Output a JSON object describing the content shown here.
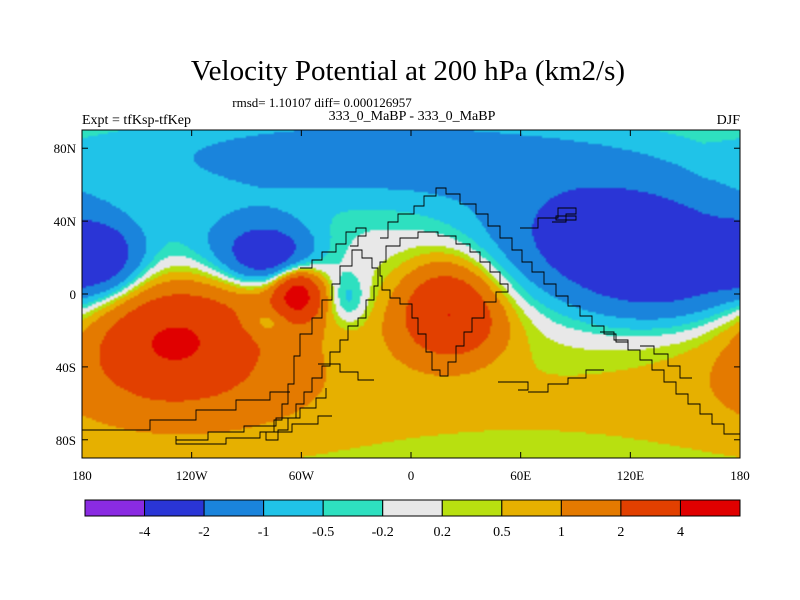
{
  "chart_data": {
    "type": "heatmap",
    "title": "Velocity Potential at 200 hPa (km2/s)",
    "stats_line": "rmsd= 1.10107 diff= 0.000126957",
    "left_label": "Expt = tfKsp-tfKep",
    "center_label": "333_0_MaBP - 333_0_MaBP",
    "right_label": "DJF",
    "x_axis": {
      "range": [
        -180,
        180
      ],
      "ticks": [
        -180,
        -120,
        -60,
        0,
        60,
        120,
        180
      ],
      "tick_labels": [
        "180",
        "120W",
        "60W",
        "0",
        "60E",
        "120E",
        "180"
      ]
    },
    "y_axis": {
      "range": [
        -90,
        90
      ],
      "ticks": [
        80,
        40,
        0,
        -40,
        -80
      ],
      "tick_labels": [
        "80N",
        "40N",
        "0",
        "40S",
        "80S"
      ]
    },
    "colorbar": {
      "levels": [
        "-4",
        "-2",
        "-1",
        "-0.5",
        "-0.2",
        "0.2",
        "0.5",
        "1",
        "2",
        "4"
      ],
      "colors": [
        "#8a2be2",
        "#2a35d6",
        "#1a84dc",
        "#20c3e8",
        "#2ee0c0",
        "#e8e8e8",
        "#b8e010",
        "#e6b000",
        "#e47a00",
        "#e24000",
        "#e00000"
      ]
    },
    "features": [
      {
        "name": "Pacific East negative",
        "lon": -170,
        "lat": 20,
        "value": -2.5
      },
      {
        "name": "North Atlantic negative",
        "lon": -78,
        "lat": 20,
        "value": -2.6
      },
      {
        "name": "North Atlantic outer",
        "lon": -90,
        "lat": 28,
        "value": -1.4
      },
      {
        "name": "Atlantic equatorial maximum",
        "lon": -62,
        "lat": 0,
        "value": 3.5
      },
      {
        "name": "Atlantic ring",
        "lon": -65,
        "lat": -2,
        "value": 1.4
      },
      {
        "name": "Tropical Atlantic dip",
        "lon": -78,
        "lat": -15,
        "value": -1.2
      },
      {
        "name": "Mid Atlantic negative",
        "lon": -35,
        "lat": -3,
        "value": -1.1
      },
      {
        "name": "South Pacific maximum",
        "lon": -130,
        "lat": -25,
        "value": 2.9
      },
      {
        "name": "South Pacific broad",
        "lon": -120,
        "lat": -30,
        "value": 1.3
      },
      {
        "name": "Africa maximum",
        "lon": 20,
        "lat": -5,
        "value": 2.8
      },
      {
        "name": "Africa south lobe",
        "lon": 25,
        "lat": -18,
        "value": 1.4
      },
      {
        "name": "Asia negative",
        "lon": 110,
        "lat": 35,
        "value": -2.5
      },
      {
        "name": "Pacific West negative",
        "lon": 140,
        "lat": 10,
        "value": -2.5
      },
      {
        "name": "Arctic negative",
        "lon": -20,
        "lat": 75,
        "value": -1.5
      },
      {
        "name": "Southern Ocean positive",
        "lon": 60,
        "lat": -60,
        "value": 0.55
      }
    ]
  }
}
